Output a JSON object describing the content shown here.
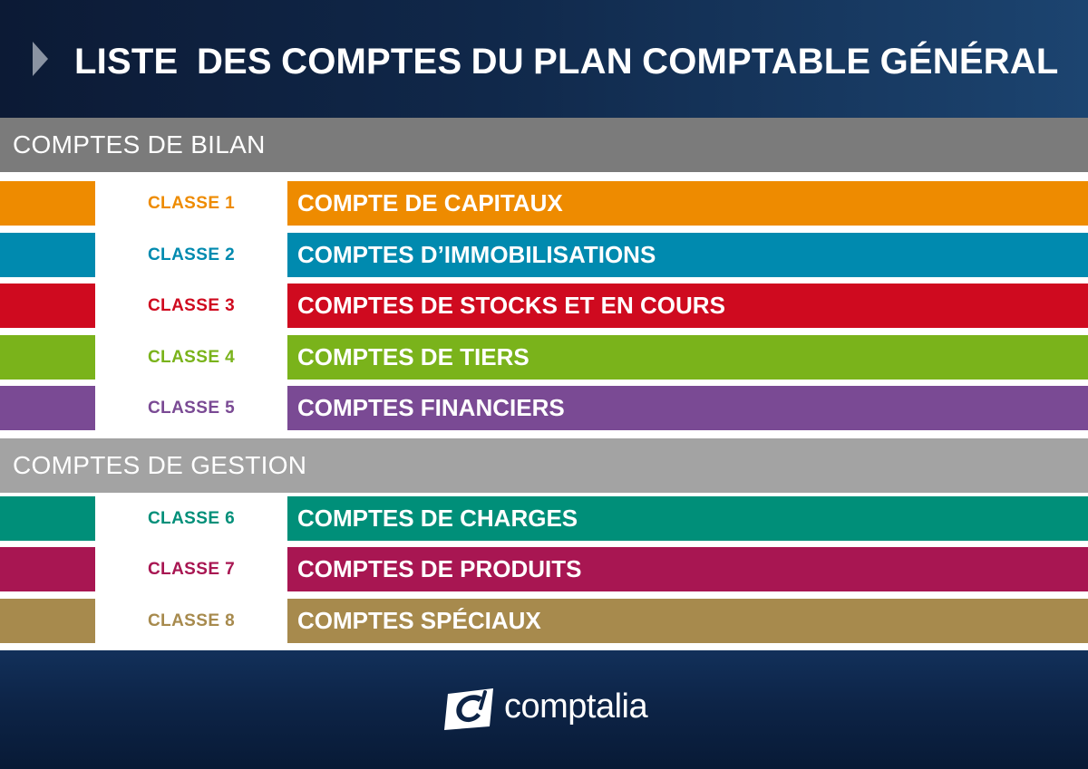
{
  "header": {
    "title": "LISTE  DES COMPTES DU PLAN COMPTABLE GÉNÉRAL",
    "arrow_icon": "triangle-right-icon"
  },
  "sections": [
    {
      "title": "COMPTES DE BILAN",
      "rows": [
        {
          "classe": "CLASSE 1",
          "label": "COMPTE DE CAPITAUX",
          "color": "#ee8b00"
        },
        {
          "classe": "CLASSE 2",
          "label": "COMPTES D’IMMOBILISATIONS",
          "color": "#008aaf"
        },
        {
          "classe": "CLASSE 3",
          "label": "COMPTES DE STOCKS ET EN COURS",
          "color": "#cf0a1f"
        },
        {
          "classe": "CLASSE 4",
          "label": "COMPTES DE TIERS",
          "color": "#7ab31b"
        },
        {
          "classe": "CLASSE 5",
          "label": "COMPTES FINANCIERS",
          "color": "#7a4a94"
        }
      ]
    },
    {
      "title": "COMPTES DE GESTION",
      "rows": [
        {
          "classe": "CLASSE 6",
          "label": "COMPTES DE CHARGES",
          "color": "#008f79"
        },
        {
          "classe": "CLASSE 7",
          "label": "COMPTES DE PRODUITS",
          "color": "#a81652"
        },
        {
          "classe": "CLASSE 8",
          "label": "COMPTES SPÉCIAUX",
          "color": "#a78a4d"
        }
      ]
    }
  ],
  "footer": {
    "logo_text": "comptalia",
    "logo_icon": "comptalia-logo-icon"
  }
}
